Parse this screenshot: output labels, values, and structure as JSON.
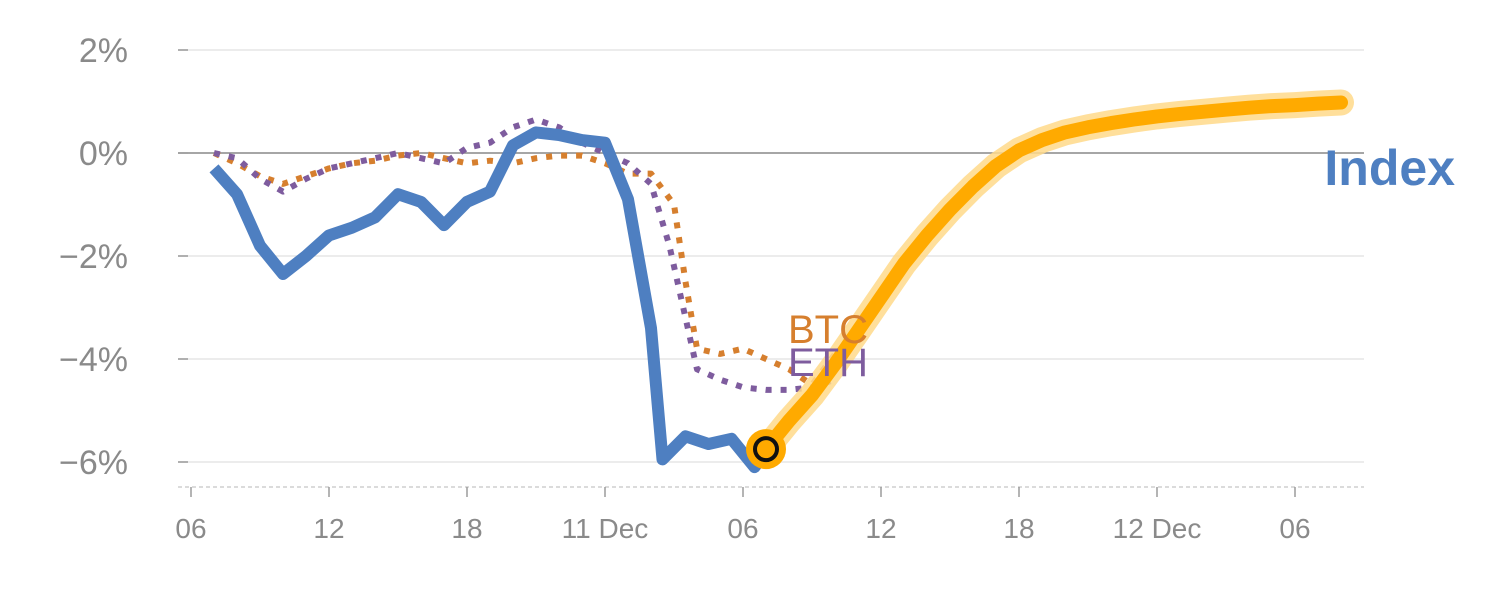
{
  "chart_data": {
    "type": "line",
    "title": "",
    "xlabel": "",
    "ylabel": "",
    "ylim": [
      -6.5,
      2.5
    ],
    "y_ticks": [
      {
        "value": 2,
        "label": "2%"
      },
      {
        "value": 0,
        "label": "0%"
      },
      {
        "value": -2,
        "label": "−2%"
      },
      {
        "value": -4,
        "label": "−4%"
      },
      {
        "value": -6,
        "label": "−6%"
      }
    ],
    "x_ticks": [
      {
        "value": 0,
        "label": "06"
      },
      {
        "value": 6,
        "label": "12"
      },
      {
        "value": 12,
        "label": "18"
      },
      {
        "value": 18,
        "label": "11 Dec"
      },
      {
        "value": 24,
        "label": "06"
      },
      {
        "value": 30,
        "label": "12"
      },
      {
        "value": 36,
        "label": "18"
      },
      {
        "value": 42,
        "label": "12 Dec"
      },
      {
        "value": 48,
        "label": "06"
      }
    ],
    "xlim": [
      0,
      51
    ],
    "grid": true,
    "zero_line": true,
    "colors": {
      "index": "#4e7fc1",
      "btc": "#d67f2e",
      "eth": "#7e5c9e",
      "forecast": "#ffaa00",
      "forecast_glow": "#ffd98a",
      "grid": "#e6e6e6",
      "zero": "#888888"
    },
    "series": [
      {
        "key": "btc",
        "name": "BTC",
        "style": "dotted",
        "points": [
          [
            1,
            0
          ],
          [
            2,
            -0.2
          ],
          [
            3,
            -0.45
          ],
          [
            4,
            -0.6
          ],
          [
            5,
            -0.45
          ],
          [
            6,
            -0.3
          ],
          [
            7,
            -0.2
          ],
          [
            8,
            -0.15
          ],
          [
            9,
            -0.05
          ],
          [
            10,
            0
          ],
          [
            11,
            -0.1
          ],
          [
            12,
            -0.2
          ],
          [
            13,
            -0.15
          ],
          [
            14,
            -0.2
          ],
          [
            15,
            -0.1
          ],
          [
            16,
            -0.05
          ],
          [
            17,
            -0.05
          ],
          [
            18,
            -0.2
          ],
          [
            19,
            -0.4
          ],
          [
            20,
            -0.4
          ],
          [
            21,
            -1.0
          ],
          [
            21.5,
            -2.5
          ],
          [
            22,
            -3.8
          ],
          [
            23,
            -3.9
          ],
          [
            24,
            -3.8
          ],
          [
            25,
            -4.0
          ],
          [
            26,
            -4.2
          ],
          [
            27,
            -4.5
          ],
          [
            28,
            -3.9
          ]
        ]
      },
      {
        "key": "eth",
        "name": "ETH",
        "style": "dotted",
        "points": [
          [
            1,
            0
          ],
          [
            2,
            -0.1
          ],
          [
            3,
            -0.5
          ],
          [
            4,
            -0.75
          ],
          [
            5,
            -0.5
          ],
          [
            6,
            -0.3
          ],
          [
            7,
            -0.2
          ],
          [
            8,
            -0.1
          ],
          [
            9,
            0
          ],
          [
            10,
            -0.1
          ],
          [
            11,
            -0.2
          ],
          [
            12,
            0.1
          ],
          [
            13,
            0.2
          ],
          [
            14,
            0.5
          ],
          [
            15,
            0.65
          ],
          [
            16,
            0.5
          ],
          [
            17,
            0.2
          ],
          [
            18,
            0
          ],
          [
            19,
            -0.2
          ],
          [
            20,
            -0.6
          ],
          [
            20.8,
            -1.8
          ],
          [
            21.5,
            -3.2
          ],
          [
            22,
            -4.2
          ],
          [
            23,
            -4.4
          ],
          [
            24,
            -4.55
          ],
          [
            25,
            -4.6
          ],
          [
            26,
            -4.6
          ],
          [
            27,
            -4.55
          ],
          [
            28,
            -4.4
          ]
        ]
      },
      {
        "key": "index",
        "name": "Index",
        "style": "solid",
        "points": [
          [
            1,
            -0.3
          ],
          [
            2,
            -0.8
          ],
          [
            3,
            -1.8
          ],
          [
            4,
            -2.35
          ],
          [
            5,
            -2.0
          ],
          [
            6,
            -1.6
          ],
          [
            7,
            -1.45
          ],
          [
            8,
            -1.25
          ],
          [
            9,
            -0.8
          ],
          [
            10,
            -0.95
          ],
          [
            11,
            -1.4
          ],
          [
            12,
            -0.95
          ],
          [
            13,
            -0.75
          ],
          [
            14,
            0.15
          ],
          [
            15,
            0.4
          ],
          [
            16,
            0.35
          ],
          [
            17,
            0.25
          ],
          [
            18,
            0.2
          ],
          [
            19,
            -0.9
          ],
          [
            20,
            -3.4
          ],
          [
            20.5,
            -5.95
          ],
          [
            21.5,
            -5.5
          ],
          [
            22.5,
            -5.65
          ],
          [
            23.5,
            -5.55
          ],
          [
            24.5,
            -6.1
          ],
          [
            25,
            -5.8
          ]
        ]
      },
      {
        "key": "forecast",
        "name": "",
        "style": "forecast",
        "points": [
          [
            25,
            -5.75
          ],
          [
            26,
            -5.2
          ],
          [
            27,
            -4.7
          ],
          [
            28,
            -4.1
          ],
          [
            29,
            -3.45
          ],
          [
            30,
            -2.8
          ],
          [
            31,
            -2.15
          ],
          [
            32,
            -1.6
          ],
          [
            33,
            -1.1
          ],
          [
            34,
            -0.65
          ],
          [
            35,
            -0.25
          ],
          [
            36,
            0.05
          ],
          [
            37,
            0.25
          ],
          [
            38,
            0.4
          ],
          [
            39,
            0.5
          ],
          [
            40,
            0.58
          ],
          [
            41,
            0.65
          ],
          [
            42,
            0.71
          ],
          [
            43,
            0.76
          ],
          [
            44,
            0.8
          ],
          [
            45,
            0.84
          ],
          [
            46,
            0.88
          ],
          [
            47,
            0.91
          ],
          [
            48,
            0.93
          ],
          [
            49,
            0.96
          ],
          [
            50,
            0.98
          ]
        ]
      }
    ],
    "marker": {
      "x": 25,
      "y": -5.75
    },
    "labels": {
      "btc": "BTC",
      "eth": "ETH",
      "index": "Index"
    }
  }
}
